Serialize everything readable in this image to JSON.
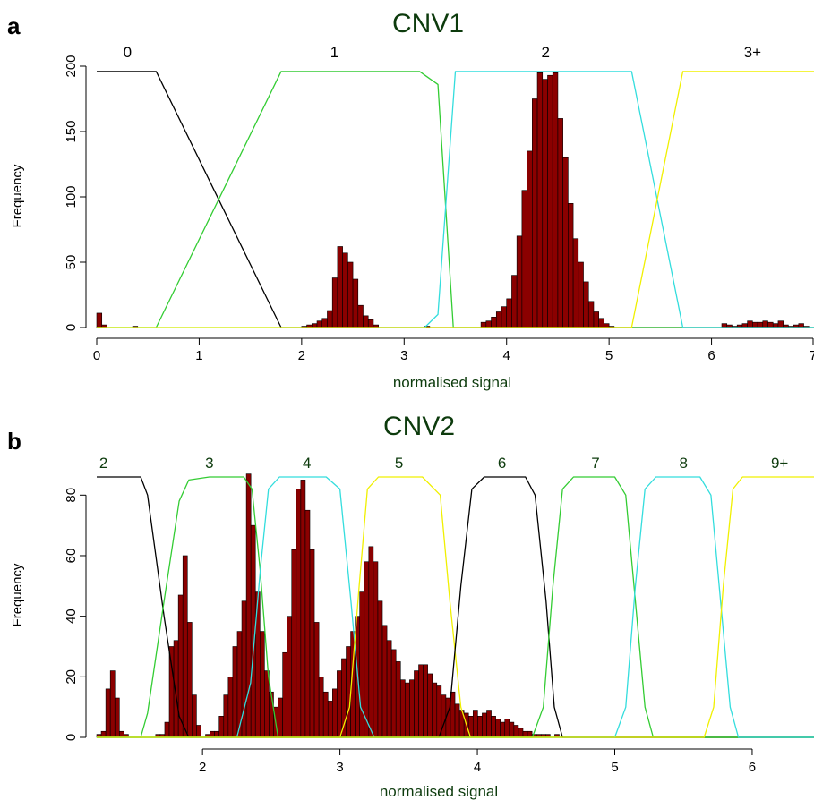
{
  "colors": {
    "bar_fill": "#8b0000",
    "bar_stroke": "#000000",
    "title": "#0d3b0d",
    "axis_label": "#0d3b0d",
    "curve_black": "#000000",
    "curve_green": "#33cc33",
    "curve_cyan": "#33dddd",
    "curve_yellow": "#f0f000"
  },
  "chart_data": [
    {
      "type": "histogram",
      "panel_letter": "a",
      "title": "CNV1",
      "xlabel": "normalised signal",
      "ylabel": "Frequency",
      "xlim": [
        0,
        7
      ],
      "ylim": [
        0,
        200
      ],
      "x_ticks": [
        0,
        1,
        2,
        3,
        4,
        5,
        6,
        7
      ],
      "x_tick_labels": [
        "0",
        "1",
        "2",
        "3",
        "4",
        "5",
        "6",
        "7"
      ],
      "y_ticks": [
        0,
        50,
        100,
        150,
        200
      ],
      "y_tick_labels": [
        "0",
        "50",
        "100",
        "150",
        "200"
      ],
      "bin_start": 0,
      "bin_width": 0.05,
      "counts": [
        11,
        2,
        0,
        0,
        0,
        0,
        0,
        1,
        0,
        0,
        0,
        0,
        0,
        0,
        0,
        0,
        0,
        0,
        0,
        0,
        0,
        0,
        0,
        0,
        0,
        0,
        0,
        0,
        0,
        0,
        0,
        0,
        0,
        0,
        0,
        0,
        0,
        0,
        0,
        0,
        1,
        2,
        3,
        5,
        7,
        13,
        38,
        62,
        57,
        50,
        37,
        17,
        9,
        6,
        2,
        0,
        0,
        0,
        0,
        0,
        0,
        0,
        0,
        0,
        1,
        0,
        0,
        0,
        0,
        0,
        0,
        0,
        0,
        0,
        0,
        4,
        5,
        8,
        12,
        16,
        22,
        40,
        70,
        105,
        135,
        175,
        195,
        190,
        193,
        195,
        160,
        130,
        95,
        68,
        50,
        35,
        20,
        12,
        7,
        3,
        1,
        0,
        0,
        0,
        0,
        0,
        0,
        0,
        0,
        0,
        0,
        0,
        0,
        0,
        0,
        0,
        0,
        0,
        0,
        0,
        0,
        0,
        3,
        2,
        1,
        2,
        3,
        5,
        4,
        4,
        5,
        4,
        3,
        5,
        2,
        1,
        2,
        3,
        1
      ],
      "curve_height": 196,
      "curves": [
        {
          "name": "0",
          "color_key": "curve_black",
          "points": [
            [
              0,
              196
            ],
            [
              0.58,
              196
            ],
            [
              1.8,
              0
            ],
            [
              7,
              0
            ]
          ]
        },
        {
          "name": "1",
          "color_key": "curve_green",
          "points": [
            [
              0,
              0
            ],
            [
              0.58,
              0
            ],
            [
              1.8,
              196
            ],
            [
              3.15,
              196
            ],
            [
              3.33,
              186
            ],
            [
              3.48,
              0
            ],
            [
              7,
              0
            ]
          ]
        },
        {
          "name": "2",
          "color_key": "curve_cyan",
          "points": [
            [
              0,
              0
            ],
            [
              3.2,
              0
            ],
            [
              3.33,
              10
            ],
            [
              3.5,
              196
            ],
            [
              5.22,
              196
            ],
            [
              5.72,
              0
            ],
            [
              7,
              0
            ]
          ]
        },
        {
          "name": "3+",
          "color_key": "curve_yellow",
          "points": [
            [
              0,
              0
            ],
            [
              5.22,
              0
            ],
            [
              5.72,
              196
            ],
            [
              7,
              196
            ]
          ]
        }
      ],
      "state_labels": [
        {
          "label": "0",
          "x": 0.3
        },
        {
          "label": "1",
          "x": 2.32
        },
        {
          "label": "2",
          "x": 4.38
        },
        {
          "label": "3+",
          "x": 6.4
        }
      ]
    },
    {
      "type": "histogram",
      "panel_letter": "b",
      "title": "CNV2",
      "xlabel": "normalised signal",
      "ylabel": "Frequency",
      "xlim": [
        1.23,
        6.45
      ],
      "ylim": [
        0,
        86
      ],
      "x_ticks": [
        2,
        3,
        4,
        5,
        6
      ],
      "x_tick_labels": [
        "2",
        "3",
        "4",
        "5",
        "6"
      ],
      "y_ticks": [
        0,
        20,
        40,
        60,
        80
      ],
      "y_tick_labels": [
        "0",
        "20",
        "40",
        "60",
        "80"
      ],
      "bin_start": 1.23,
      "bin_width": 0.033,
      "counts": [
        1,
        2,
        16,
        22,
        13,
        2,
        1,
        0,
        0,
        0,
        0,
        0,
        0,
        1,
        1,
        5,
        30,
        32,
        47,
        60,
        38,
        14,
        4,
        0,
        1,
        2,
        2,
        7,
        14,
        20,
        30,
        35,
        45,
        87,
        70,
        48,
        35,
        22,
        15,
        10,
        13,
        28,
        40,
        62,
        82,
        85,
        75,
        62,
        38,
        20,
        15,
        12,
        16,
        22,
        26,
        30,
        35,
        40,
        48,
        58,
        63,
        58,
        45,
        37,
        32,
        29,
        25,
        19,
        18,
        19,
        22,
        24,
        24,
        21,
        18,
        17,
        14,
        13,
        15,
        11,
        9,
        8,
        7,
        9,
        7,
        8,
        9,
        7,
        6,
        5,
        6,
        5,
        4,
        3,
        2,
        2,
        1,
        1,
        1,
        1,
        0,
        1,
        0
      ],
      "curve_height": 86,
      "curves": [
        {
          "name": "2",
          "color_key": "curve_black",
          "points": [
            [
              1.23,
              86
            ],
            [
              1.55,
              86
            ],
            [
              1.6,
              80
            ],
            [
              1.72,
              40
            ],
            [
              1.83,
              7
            ],
            [
              1.9,
              0
            ],
            [
              6.45,
              0
            ]
          ]
        },
        {
          "name": "3",
          "color_key": "curve_green",
          "points": [
            [
              1.23,
              0
            ],
            [
              1.55,
              0
            ],
            [
              1.6,
              8
            ],
            [
              1.72,
              45
            ],
            [
              1.83,
              78
            ],
            [
              1.9,
              85
            ],
            [
              2.05,
              86
            ],
            [
              2.3,
              86
            ],
            [
              2.36,
              82
            ],
            [
              2.42,
              55
            ],
            [
              2.48,
              20
            ],
            [
              2.55,
              0
            ],
            [
              6.45,
              0
            ]
          ]
        },
        {
          "name": "4",
          "color_key": "curve_cyan",
          "points": [
            [
              1.23,
              0
            ],
            [
              2.25,
              0
            ],
            [
              2.35,
              18
            ],
            [
              2.42,
              55
            ],
            [
              2.48,
              82
            ],
            [
              2.56,
              86
            ],
            [
              2.9,
              86
            ],
            [
              3.0,
              82
            ],
            [
              3.08,
              45
            ],
            [
              3.15,
              10
            ],
            [
              3.25,
              0
            ],
            [
              6.45,
              0
            ]
          ]
        },
        {
          "name": "5",
          "color_key": "curve_yellow",
          "points": [
            [
              1.23,
              0
            ],
            [
              3.0,
              0
            ],
            [
              3.07,
              10
            ],
            [
              3.14,
              50
            ],
            [
              3.2,
              82
            ],
            [
              3.28,
              86
            ],
            [
              3.6,
              86
            ],
            [
              3.73,
              80
            ],
            [
              3.8,
              45
            ],
            [
              3.88,
              10
            ],
            [
              3.95,
              0
            ],
            [
              6.45,
              0
            ]
          ]
        },
        {
          "name": "6",
          "color_key": "curve_black",
          "points": [
            [
              1.23,
              0
            ],
            [
              3.72,
              0
            ],
            [
              3.8,
              10
            ],
            [
              3.88,
              50
            ],
            [
              3.96,
              82
            ],
            [
              4.05,
              86
            ],
            [
              4.35,
              86
            ],
            [
              4.42,
              80
            ],
            [
              4.5,
              45
            ],
            [
              4.56,
              10
            ],
            [
              4.62,
              0
            ],
            [
              6.45,
              0
            ]
          ]
        },
        {
          "name": "7",
          "color_key": "curve_green",
          "points": [
            [
              1.23,
              0
            ],
            [
              4.4,
              0
            ],
            [
              4.48,
              10
            ],
            [
              4.55,
              50
            ],
            [
              4.62,
              82
            ],
            [
              4.7,
              86
            ],
            [
              5.0,
              86
            ],
            [
              5.08,
              80
            ],
            [
              5.15,
              45
            ],
            [
              5.22,
              10
            ],
            [
              5.28,
              0
            ],
            [
              6.45,
              0
            ]
          ]
        },
        {
          "name": "8",
          "color_key": "curve_cyan",
          "points": [
            [
              1.23,
              0
            ],
            [
              5.0,
              0
            ],
            [
              5.08,
              10
            ],
            [
              5.15,
              50
            ],
            [
              5.22,
              82
            ],
            [
              5.3,
              86
            ],
            [
              5.62,
              86
            ],
            [
              5.7,
              80
            ],
            [
              5.77,
              45
            ],
            [
              5.84,
              10
            ],
            [
              5.9,
              0
            ],
            [
              6.45,
              0
            ]
          ]
        },
        {
          "name": "9+",
          "color_key": "curve_yellow",
          "points": [
            [
              1.23,
              0
            ],
            [
              5.65,
              0
            ],
            [
              5.72,
              10
            ],
            [
              5.79,
              50
            ],
            [
              5.86,
              82
            ],
            [
              5.93,
              86
            ],
            [
              6.45,
              86
            ]
          ]
        }
      ],
      "state_labels": [
        {
          "label": "2",
          "x": 1.28
        },
        {
          "label": "3",
          "x": 2.05
        },
        {
          "label": "4",
          "x": 2.76
        },
        {
          "label": "5",
          "x": 3.43
        },
        {
          "label": "6",
          "x": 4.18
        },
        {
          "label": "7",
          "x": 4.86
        },
        {
          "label": "8",
          "x": 5.5
        },
        {
          "label": "9+",
          "x": 6.2
        }
      ]
    }
  ]
}
